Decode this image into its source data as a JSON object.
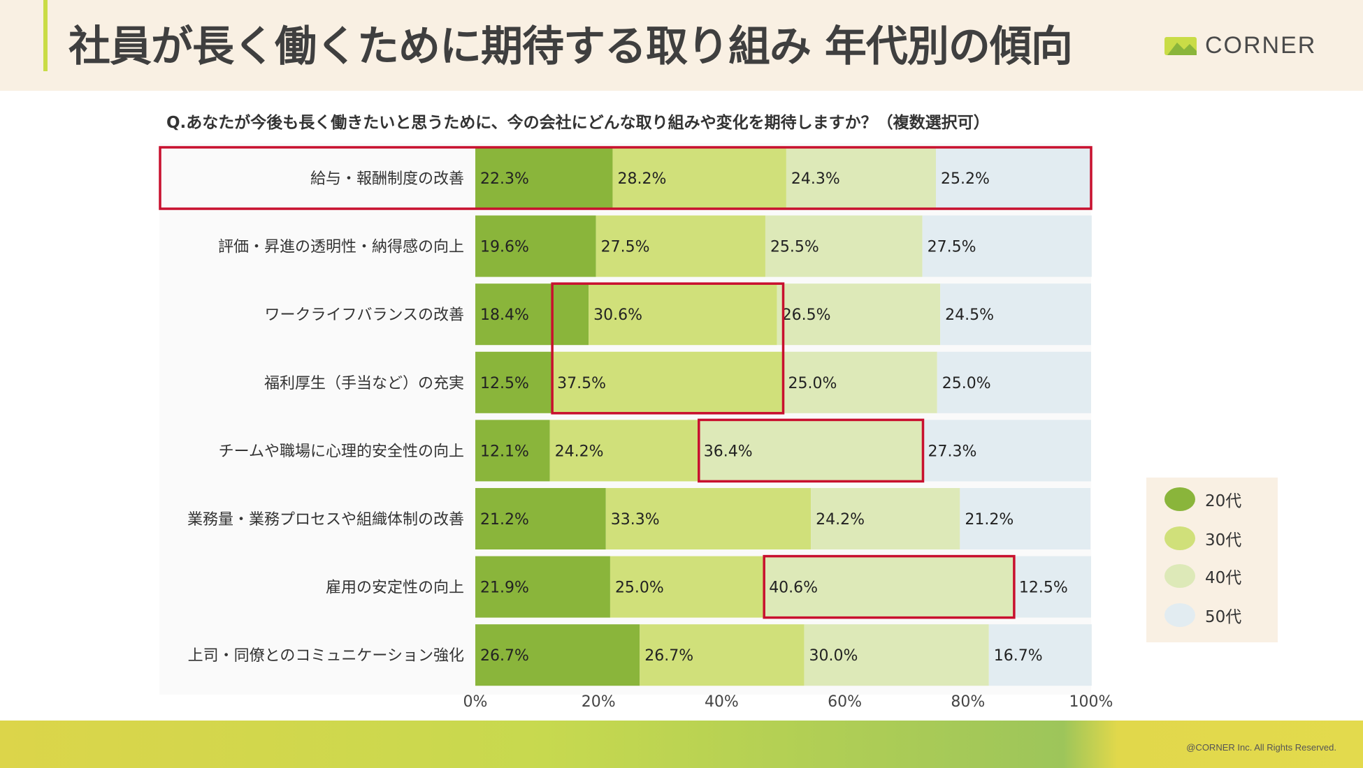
{
  "header": {
    "title": "社員が長く働くために期待する取り組み 年代別の傾向",
    "logo_text": "CORNER"
  },
  "question": "Q.あなたが今後も長く働きたいと思うために、今の会社にどんな取り組みや変化を期待しますか？（複数選択可）",
  "footer": {
    "copyright": "@CORNER Inc. All Rights Reserved."
  },
  "colors": {
    "20s": "#8ab53b",
    "30s": "#d0e07a",
    "40s": "#dde9b8",
    "50s": "#e2ecf1",
    "highlight": "#c8102e",
    "header_bg": "#f9f0e3"
  },
  "legend": [
    {
      "label": "20代"
    },
    {
      "label": "30代"
    },
    {
      "label": "40代"
    },
    {
      "label": "50代"
    }
  ],
  "chart_data": {
    "type": "bar",
    "orientation": "horizontal",
    "stacked": true,
    "normalized": true,
    "categories": [
      "給与・報酬制度の改善",
      "評価・昇進の透明性・納得感の向上",
      "ワークライフバランスの改善",
      "福利厚生（手当など）の充実",
      "チームや職場に心理的安全性の向上",
      "業務量・業務プロセスや組織体制の改善",
      "雇用の安定性の向上",
      "上司・同僚とのコミュニケーション強化"
    ],
    "series": [
      {
        "name": "20代",
        "values": [
          22.3,
          19.6,
          18.4,
          12.5,
          12.1,
          21.2,
          21.9,
          26.7
        ]
      },
      {
        "name": "30代",
        "values": [
          28.2,
          27.5,
          30.6,
          37.5,
          24.2,
          33.3,
          25.0,
          26.7
        ]
      },
      {
        "name": "40代",
        "values": [
          24.3,
          25.5,
          26.5,
          25.0,
          36.4,
          24.2,
          40.6,
          30.0
        ]
      },
      {
        "name": "50代",
        "values": [
          25.2,
          27.5,
          24.5,
          25.0,
          27.3,
          21.2,
          12.5,
          16.7
        ]
      }
    ],
    "data_labels": [
      [
        "22.3%",
        "28.2%",
        "24.3%",
        "25.2%"
      ],
      [
        "19.6%",
        "27.5%",
        "25.5%",
        "27.5%"
      ],
      [
        "18.4%",
        "30.6%",
        "26.5%",
        "24.5%"
      ],
      [
        "12.5%",
        "37.5%",
        "25.0%",
        "25.0%"
      ],
      [
        "12.1%",
        "24.2%",
        "36.4%",
        "27.3%"
      ],
      [
        "21.2%",
        "33.3%",
        "24.2%",
        "21.2%"
      ],
      [
        "21.9%",
        "25.0%",
        "40.6%",
        "12.5%"
      ],
      [
        "26.7%",
        "26.7%",
        "30.0%",
        "16.7%"
      ]
    ],
    "x_ticks": [
      "0%",
      "20%",
      "40%",
      "60%",
      "80%",
      "100%"
    ],
    "xlim": [
      0,
      100
    ],
    "grid": false,
    "legend_position": "right",
    "highlights": [
      {
        "category_index": 0,
        "type": "row"
      },
      {
        "category_index": 2,
        "category_span": 2,
        "series_index": 1
      },
      {
        "category_index": 4,
        "series_index": 2
      },
      {
        "category_index": 6,
        "series_index": 2
      }
    ]
  }
}
